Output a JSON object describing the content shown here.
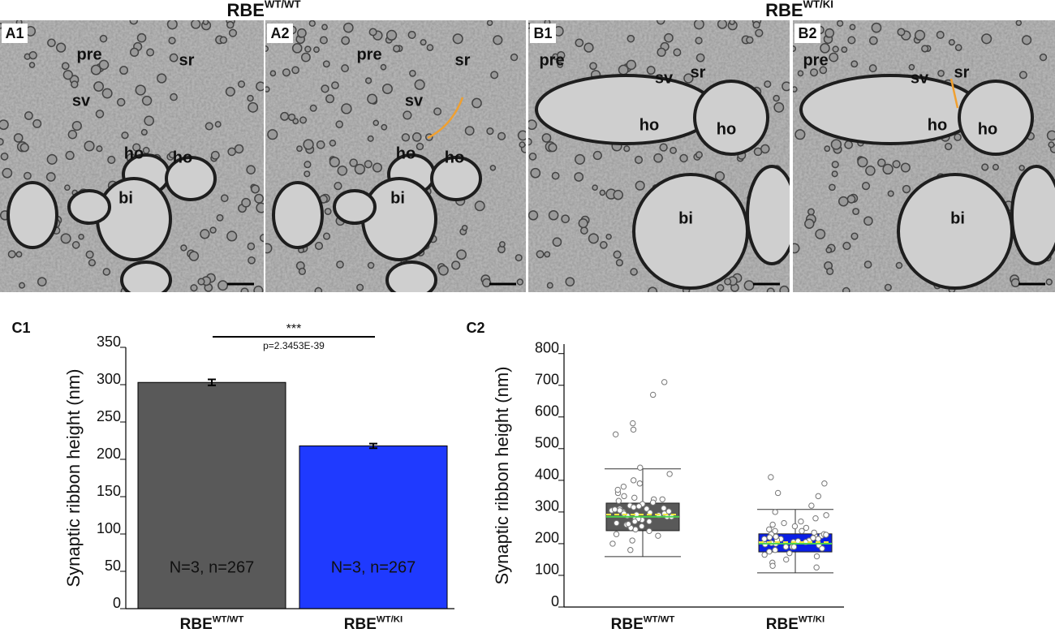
{
  "figure": {
    "group_titles": [
      {
        "base": "RBE",
        "sup": "WT/WT"
      },
      {
        "base": "RBE",
        "sup": "WT/KI"
      }
    ],
    "panels": [
      {
        "label": "A1",
        "annotations": [
          "pre",
          "sr",
          "sv",
          "ho",
          "ho",
          "bi"
        ]
      },
      {
        "label": "A2",
        "annotations": [
          "pre",
          "sr",
          "sv",
          "ho",
          "ho",
          "bi"
        ]
      },
      {
        "label": "B1",
        "annotations": [
          "pre",
          "sv",
          "sr",
          "ho",
          "ho",
          "bi"
        ]
      },
      {
        "label": "B2",
        "annotations": [
          "pre",
          "sv",
          "sr",
          "ho",
          "ho",
          "bi"
        ]
      }
    ]
  },
  "chart_data": [
    {
      "type": "bar",
      "panel_label": "C1",
      "ylabel": "Synaptic ribbon height (nm)",
      "categories": [
        {
          "base": "RBE",
          "sup": "WT/WT"
        },
        {
          "base": "RBE",
          "sup": "WT/KI"
        }
      ],
      "values": [
        303,
        218
      ],
      "errors": [
        4,
        3
      ],
      "colors": [
        "#595959",
        "#1f3aff"
      ],
      "annotations": [
        "N=3, n=267",
        "N=3, n=267"
      ],
      "significance": {
        "stars": "***",
        "label": "p=2.3453E-39"
      },
      "ylim": [
        0,
        350
      ],
      "yticks": [
        0,
        50,
        100,
        150,
        200,
        250,
        300,
        350
      ]
    },
    {
      "type": "box",
      "panel_label": "C2",
      "ylabel": "Synaptic ribbon height (nm)",
      "categories": [
        {
          "base": "RBE",
          "sup": "WT/WT"
        },
        {
          "base": "RBE",
          "sup": "WT/KI"
        }
      ],
      "colors": [
        "#595959",
        "#0a1fe6"
      ],
      "median_color": "#4cd44c",
      "mean_color": "#f5e642",
      "boxes": [
        {
          "q1": 241,
          "median": 285,
          "mean": 292,
          "q3": 328,
          "whisker_low": 159,
          "whisker_high": 436,
          "points": [
            305,
            290,
            320,
            275,
            340,
            260,
            310,
            295,
            285,
            330,
            350,
            245,
            270,
            315,
            300,
            280,
            360,
            225,
            380,
            255,
            325,
            298,
            310,
            288,
            265,
            335,
            302,
            278,
            400,
            200,
            180,
            420,
            440,
            240,
            292,
            312,
            345,
            270,
            305,
            318,
            285,
            250,
            370,
            230,
            295,
            308,
            262,
            340,
            390,
            210,
            560,
            580,
            545,
            670,
            710
          ]
        },
        {
          "q1": 174,
          "median": 200,
          "mean": 205,
          "q3": 231,
          "whisker_low": 108,
          "whisker_high": 308,
          "points": [
            215,
            205,
            230,
            190,
            240,
            220,
            180,
            250,
            210,
            225,
            200,
            260,
            170,
            235,
            195,
            215,
            280,
            160,
            300,
            150,
            225,
            208,
            218,
            190,
            245,
            230,
            202,
            185,
            320,
            140,
            130,
            125,
            350,
            360,
            390,
            410,
            270,
            212,
            198,
            222,
            240,
            175,
            255,
            215,
            205,
            228,
            190,
            265,
            290,
            165
          ]
        }
      ],
      "ylim": [
        0,
        830
      ],
      "yticks": [
        0,
        100,
        200,
        300,
        400,
        500,
        600,
        700,
        800
      ]
    }
  ]
}
